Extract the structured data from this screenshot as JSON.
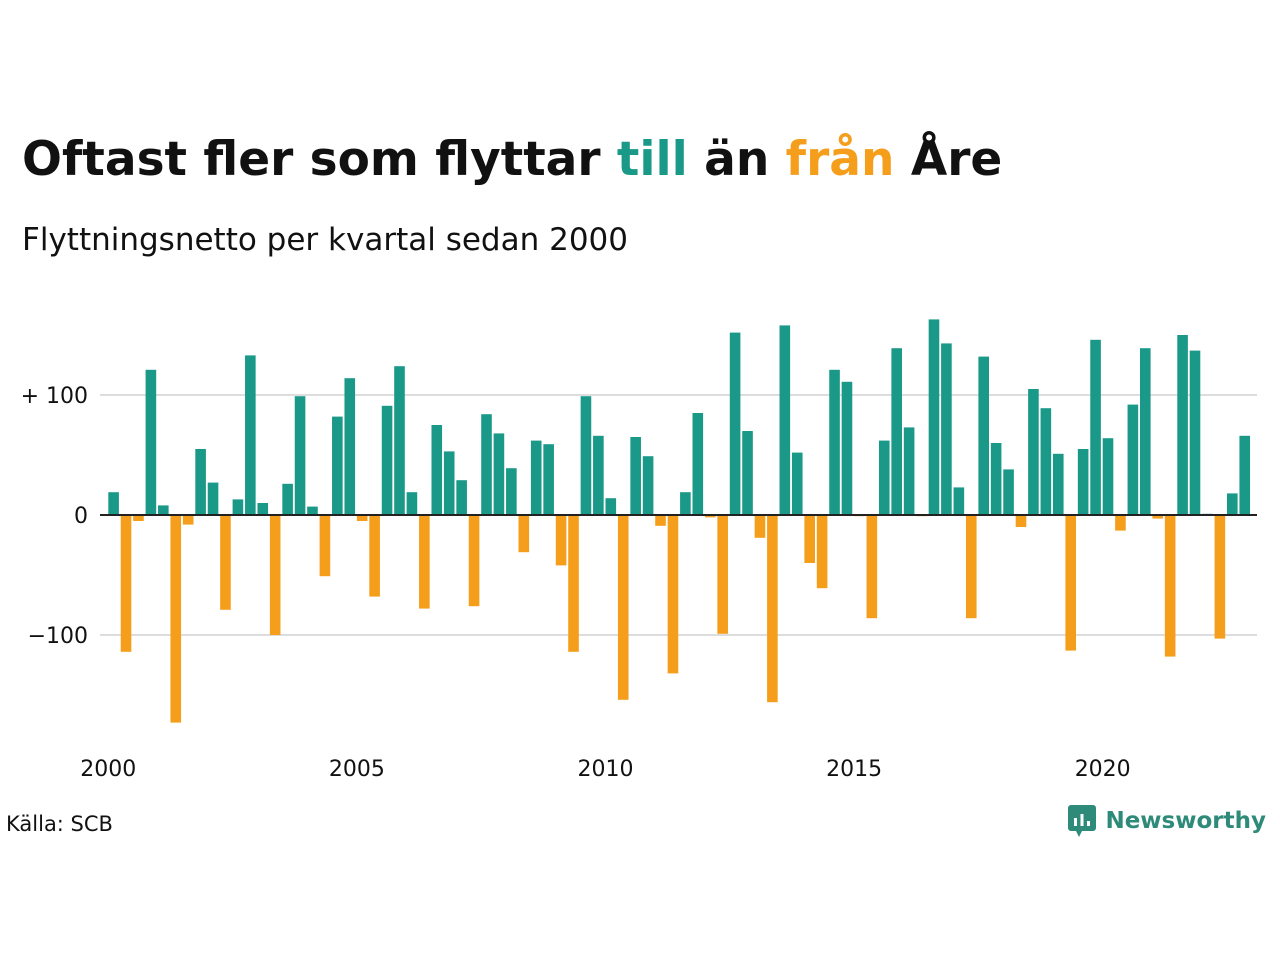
{
  "title": {
    "part1": "Oftast fler som flyttar ",
    "word_in": "till",
    "part2": " än ",
    "word_out": "från",
    "part3": " Åre"
  },
  "subtitle": "Flyttningsnetto per kvartal sedan 2000",
  "source": "Källa: SCB",
  "brand": {
    "name": "Newsworthy",
    "icon": "newsworthy-chart-bubble-icon"
  },
  "colors": {
    "positive": "#1a9988",
    "negative": "#f59e1c",
    "grid": "#dddddd",
    "text": "#111111"
  },
  "chart_data": {
    "type": "bar",
    "title": "Oftast fler som flyttar till än från Åre",
    "subtitle": "Flyttningsnetto per kvartal sedan 2000",
    "x_start": "2000 Q1",
    "x_ticks": [
      "2000",
      "2005",
      "2010",
      "2015",
      "2020"
    ],
    "y_ticks": [
      {
        "value": 100,
        "label": "+ 100"
      },
      {
        "value": 0,
        "label": "0"
      },
      {
        "value": -100,
        "label": "−100"
      }
    ],
    "ylim": [
      -180,
      170
    ],
    "grid": true,
    "values": [
      19,
      -114,
      -5,
      121,
      8,
      -173,
      -8,
      55,
      27,
      -79,
      13,
      133,
      10,
      -100,
      26,
      99,
      7,
      -51,
      82,
      114,
      -5,
      -68,
      91,
      124,
      19,
      -78,
      75,
      53,
      29,
      -76,
      84,
      68,
      39,
      -31,
      62,
      59,
      -42,
      -114,
      99,
      66,
      14,
      -154,
      65,
      49,
      -9,
      -132,
      19,
      85,
      -2,
      -99,
      152,
      70,
      -19,
      -156,
      158,
      52,
      -40,
      -61,
      121,
      111,
      -1,
      -86,
      62,
      139,
      73,
      -1,
      163,
      143,
      23,
      -86,
      132,
      60,
      38,
      -10,
      105,
      89,
      51,
      -113,
      55,
      146,
      64,
      -13,
      92,
      139,
      -3,
      -118,
      150,
      137,
      1,
      -103,
      18,
      66
    ]
  }
}
